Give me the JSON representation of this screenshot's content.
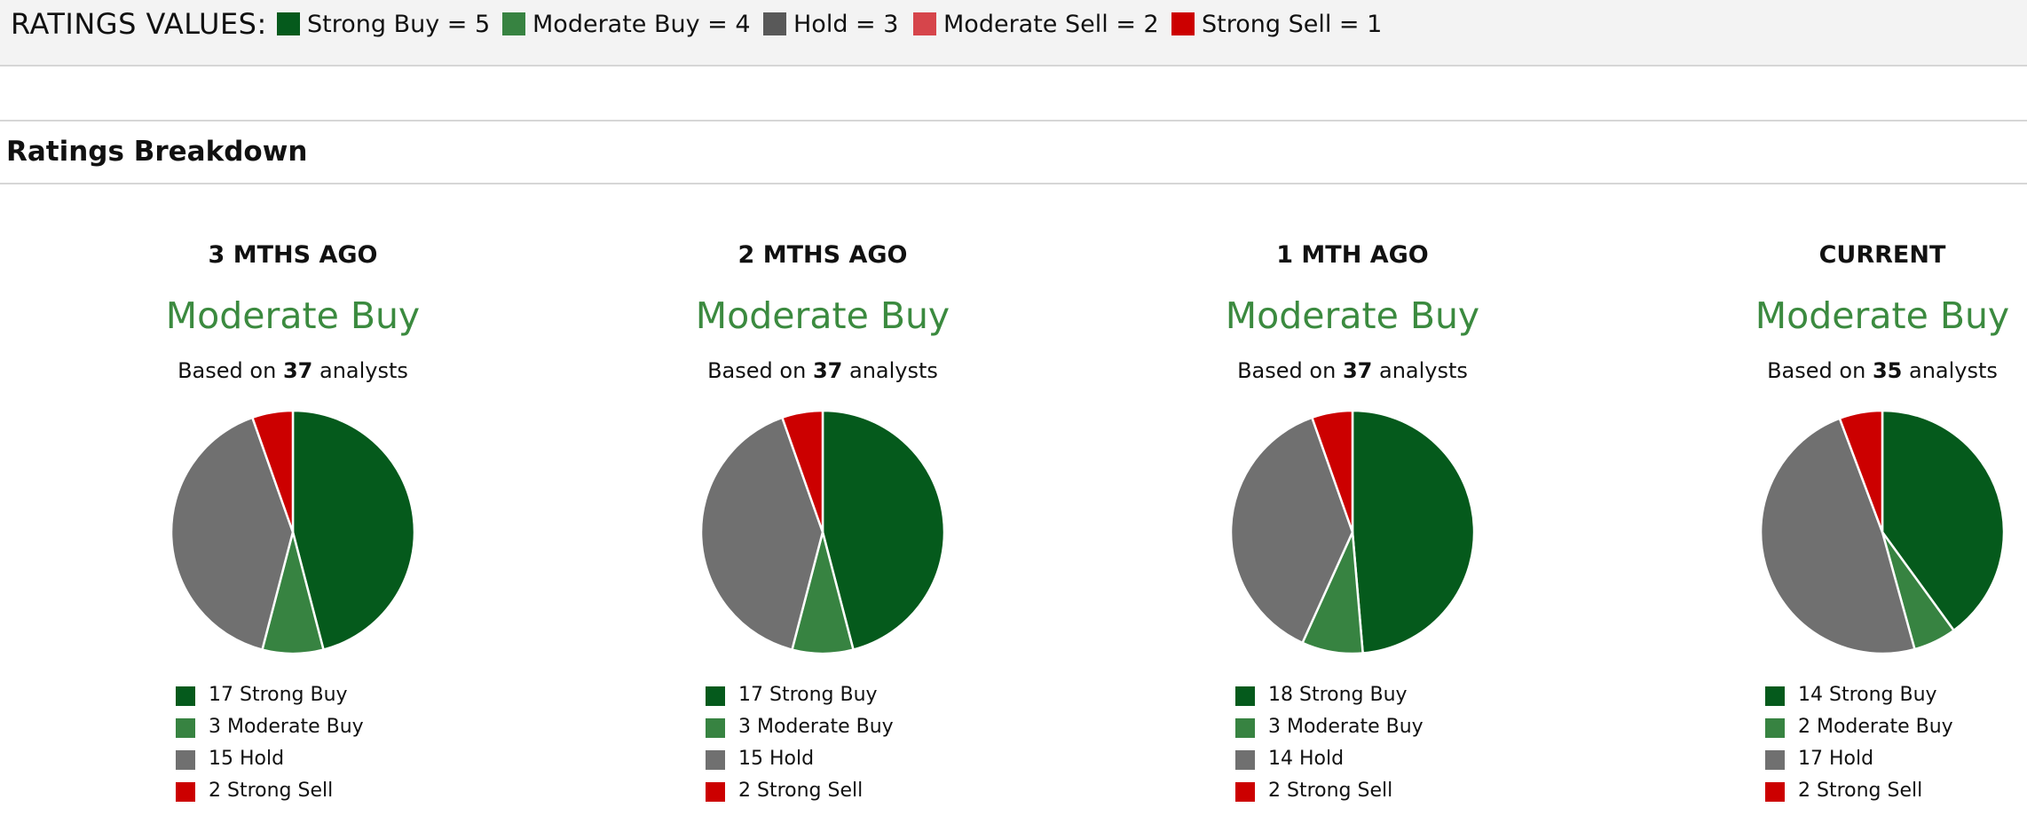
{
  "ratings_values": {
    "title": "RATINGS VALUES:",
    "items": [
      {
        "label": "Strong Buy = 5",
        "color": "#055a1c"
      },
      {
        "label": "Moderate Buy = 4",
        "color": "#378341"
      },
      {
        "label": "Hold = 3",
        "color": "#595959"
      },
      {
        "label": "Moderate Sell = 2",
        "color": "#d6454b"
      },
      {
        "label": "Strong Sell = 1",
        "color": "#cc0000"
      }
    ]
  },
  "section": {
    "title": "Ratings Breakdown"
  },
  "consensus_color": "#3b8a3f",
  "chart_data": [
    {
      "type": "pie",
      "title": "3 MTHS AGO",
      "consensus": "Moderate Buy",
      "analysts_prefix": "Based on",
      "analysts_count": "37",
      "analysts_suffix": "analysts",
      "slices": [
        {
          "name": "Strong Buy",
          "value": 17,
          "color": "#055a1c",
          "legend": "17 Strong Buy"
        },
        {
          "name": "Moderate Buy",
          "value": 3,
          "color": "#378341",
          "legend": "3 Moderate Buy"
        },
        {
          "name": "Hold",
          "value": 15,
          "color": "#707070",
          "legend": "15 Hold"
        },
        {
          "name": "Strong Sell",
          "value": 2,
          "color": "#cc0000",
          "legend": "2 Strong Sell"
        }
      ]
    },
    {
      "type": "pie",
      "title": "2 MTHS AGO",
      "consensus": "Moderate Buy",
      "analysts_prefix": "Based on",
      "analysts_count": "37",
      "analysts_suffix": "analysts",
      "slices": [
        {
          "name": "Strong Buy",
          "value": 17,
          "color": "#055a1c",
          "legend": "17 Strong Buy"
        },
        {
          "name": "Moderate Buy",
          "value": 3,
          "color": "#378341",
          "legend": "3 Moderate Buy"
        },
        {
          "name": "Hold",
          "value": 15,
          "color": "#707070",
          "legend": "15 Hold"
        },
        {
          "name": "Strong Sell",
          "value": 2,
          "color": "#cc0000",
          "legend": "2 Strong Sell"
        }
      ]
    },
    {
      "type": "pie",
      "title": "1 MTH AGO",
      "consensus": "Moderate Buy",
      "analysts_prefix": "Based on",
      "analysts_count": "37",
      "analysts_suffix": "analysts",
      "slices": [
        {
          "name": "Strong Buy",
          "value": 18,
          "color": "#055a1c",
          "legend": "18 Strong Buy"
        },
        {
          "name": "Moderate Buy",
          "value": 3,
          "color": "#378341",
          "legend": "3 Moderate Buy"
        },
        {
          "name": "Hold",
          "value": 14,
          "color": "#707070",
          "legend": "14 Hold"
        },
        {
          "name": "Strong Sell",
          "value": 2,
          "color": "#cc0000",
          "legend": "2 Strong Sell"
        }
      ]
    },
    {
      "type": "pie",
      "title": "CURRENT",
      "consensus": "Moderate Buy",
      "analysts_prefix": "Based on",
      "analysts_count": "35",
      "analysts_suffix": "analysts",
      "slices": [
        {
          "name": "Strong Buy",
          "value": 14,
          "color": "#055a1c",
          "legend": "14 Strong Buy"
        },
        {
          "name": "Moderate Buy",
          "value": 2,
          "color": "#378341",
          "legend": "2 Moderate Buy"
        },
        {
          "name": "Hold",
          "value": 17,
          "color": "#707070",
          "legend": "17 Hold"
        },
        {
          "name": "Strong Sell",
          "value": 2,
          "color": "#cc0000",
          "legend": "2 Strong Sell"
        }
      ]
    }
  ]
}
